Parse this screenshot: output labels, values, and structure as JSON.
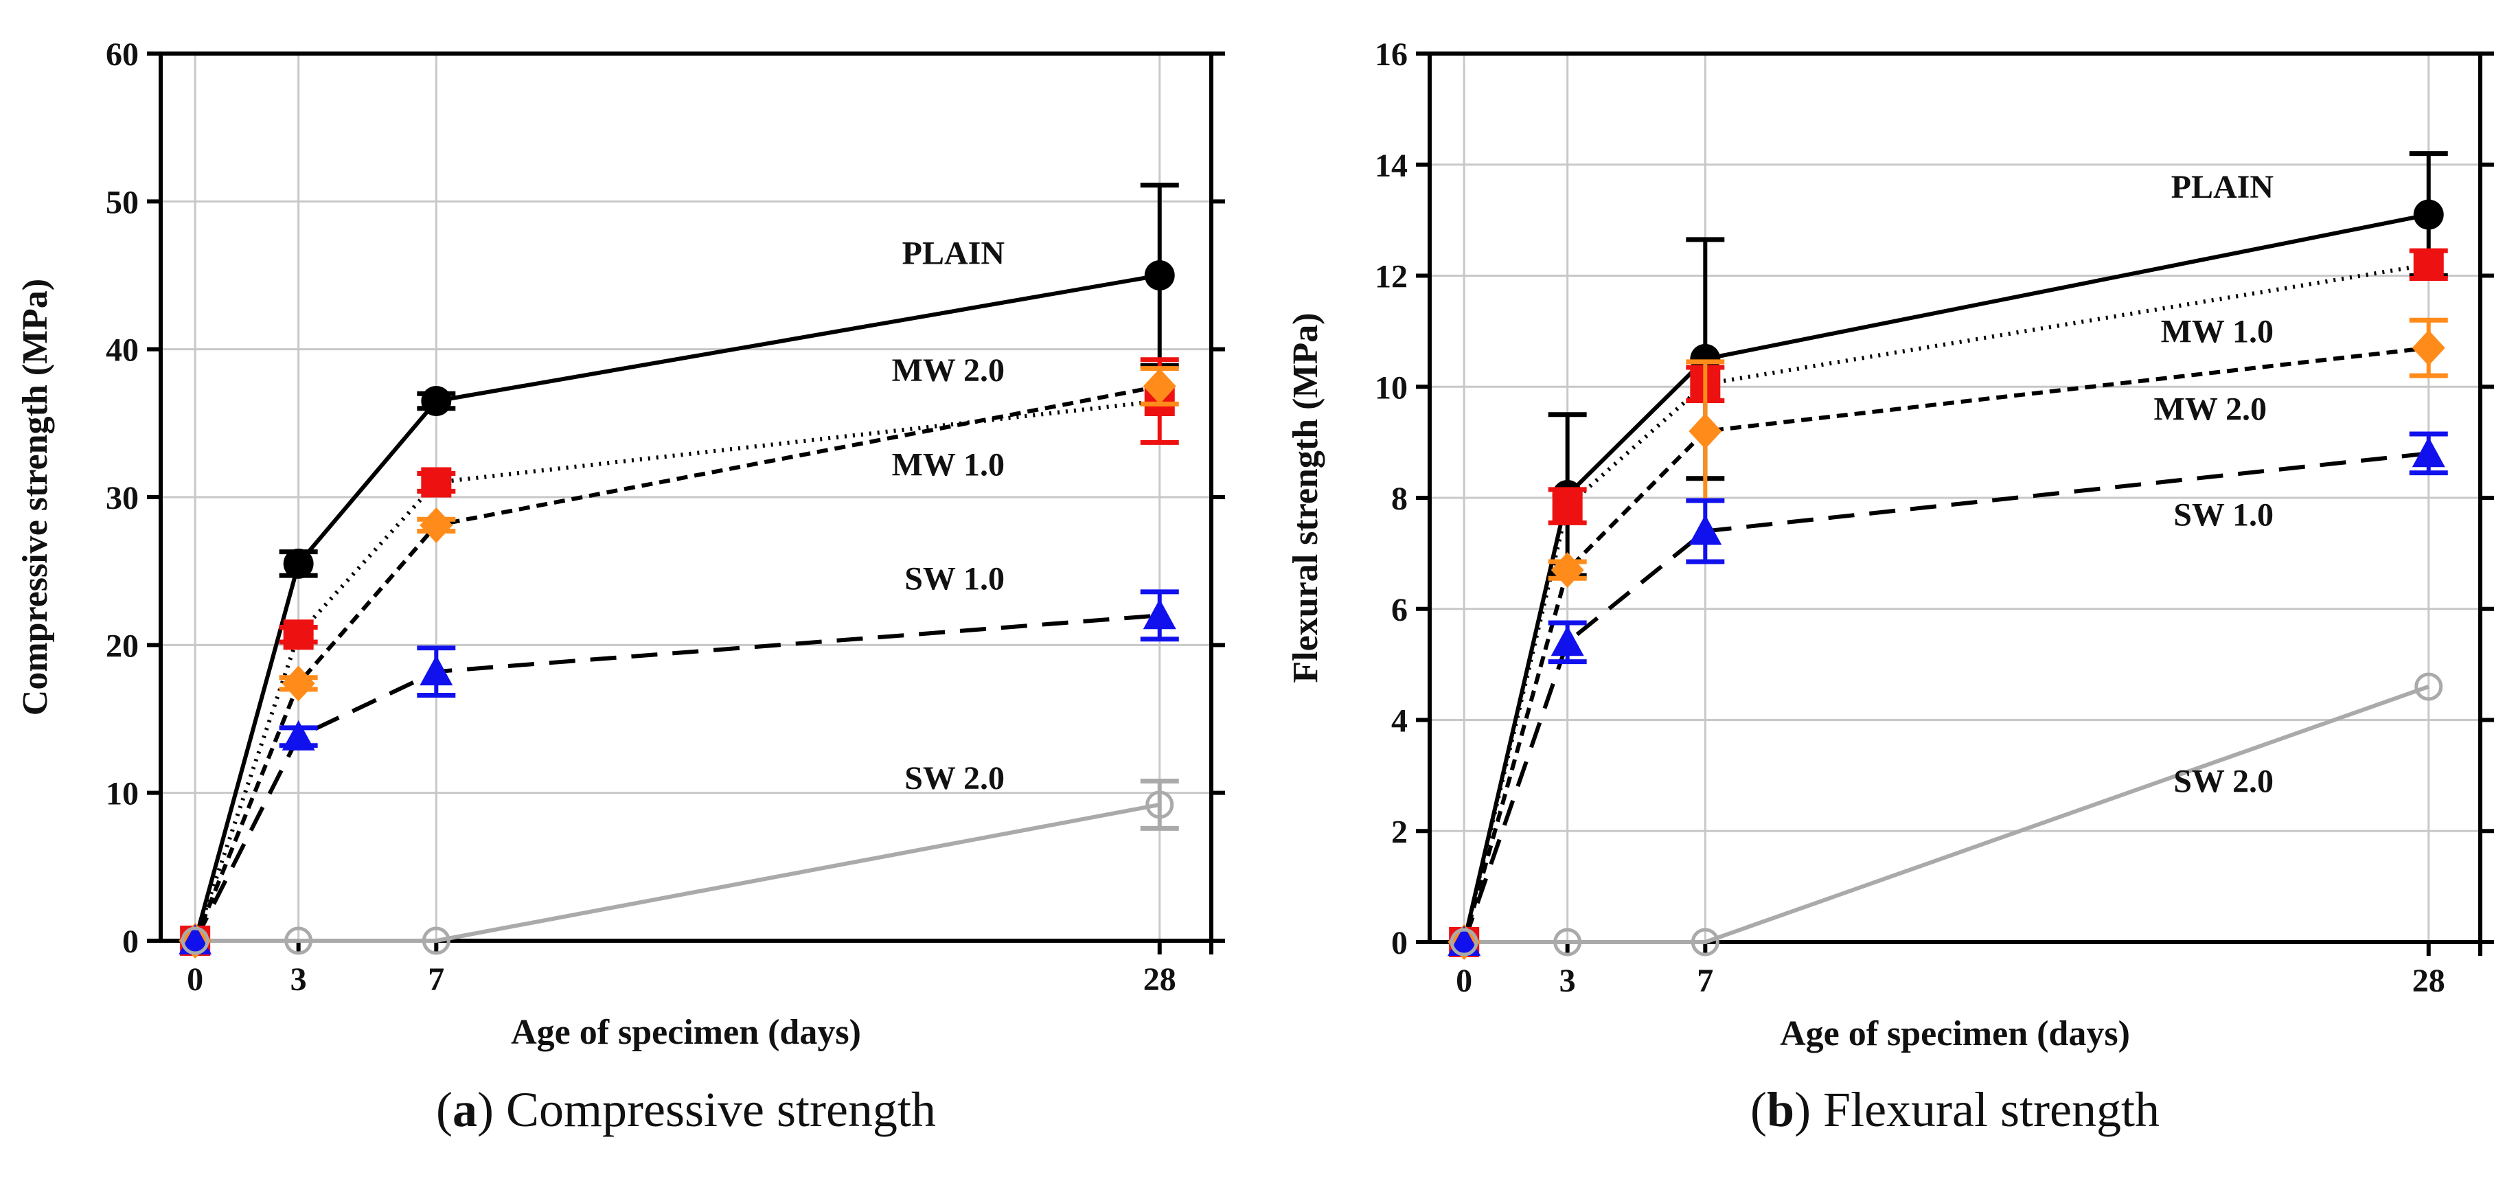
{
  "chart_data": [
    {
      "type": "line",
      "caption_letter": "a",
      "caption_text": "Compressive strength",
      "xlabel": "Age of specimen (days)",
      "ylabel": "Compressive strength (MPa)",
      "xlim": [
        -1,
        29.5
      ],
      "ylim": [
        0,
        60
      ],
      "xticks": [
        0,
        3,
        7,
        28
      ],
      "yticks": [
        0,
        10,
        20,
        30,
        40,
        50,
        60
      ],
      "grid": true,
      "x": [
        0,
        3,
        7,
        28
      ],
      "series": [
        {
          "name": "PLAIN",
          "label": "PLAIN",
          "color": "#000000",
          "marker": "circle",
          "dash": "solid",
          "values": [
            0,
            25.5,
            36.5,
            45
          ],
          "err": [
            0,
            0.8,
            0.5,
            6.1
          ],
          "label_x": 23.5,
          "label_y": 46.5
        },
        {
          "name": "MW 2.0",
          "label": "MW 2.0",
          "color": "#ee1111",
          "marker": "square",
          "dash": "dotted",
          "values": [
            0,
            20.7,
            31,
            36.5
          ],
          "err": [
            0,
            0.5,
            0.6,
            2.8
          ],
          "label_x": 23.5,
          "label_y": 38.6
        },
        {
          "name": "MW 1.0",
          "label": "MW 1.0",
          "color": "#ff8c1a",
          "marker": "diamond",
          "dash": "short-dash",
          "values": [
            0,
            17.4,
            28.1,
            37.5
          ],
          "err": [
            0,
            0.4,
            0.4,
            1.2
          ],
          "label_x": 23.5,
          "label_y": 32.2
        },
        {
          "name": "SW 1.0",
          "label": "SW 1.0",
          "color": "#1111ee",
          "marker": "triangle",
          "dash": "long-dash",
          "values": [
            0,
            13.8,
            18.2,
            22
          ],
          "err": [
            0,
            0.6,
            1.6,
            1.6
          ],
          "label_x": 23.5,
          "label_y": 24.5
        },
        {
          "name": "SW 2.0",
          "label": "SW 2.0",
          "color": "#aaaaaa",
          "marker": "open-circle",
          "dash": "solid",
          "values": [
            0,
            0,
            0,
            9.2
          ],
          "err": [
            0,
            0,
            0,
            1.6
          ],
          "label_x": 23.5,
          "label_y": 11
        }
      ]
    },
    {
      "type": "line",
      "caption_letter": "b",
      "caption_text": "Flexural strength",
      "xlabel": "Age of specimen (days)",
      "ylabel": "Flexural strength (MPa)",
      "xlim": [
        -1,
        29.5
      ],
      "ylim": [
        0,
        16
      ],
      "xticks": [
        0,
        3,
        7,
        28
      ],
      "yticks": [
        0,
        2,
        4,
        6,
        8,
        10,
        12,
        14,
        16
      ],
      "grid": true,
      "x": [
        0,
        3,
        7,
        28
      ],
      "series": [
        {
          "name": "PLAIN",
          "label": "PLAIN",
          "color": "#000000",
          "marker": "circle",
          "dash": "solid",
          "values": [
            0,
            8.05,
            10.5,
            13.1
          ],
          "err": [
            0,
            1.45,
            2.15,
            1.1
          ],
          "label_x": 23.5,
          "label_y": 13.6
        },
        {
          "name": "MW 2.0",
          "label": "MW 2.0",
          "color": "#ee1111",
          "marker": "square",
          "dash": "dotted",
          "values": [
            0,
            7.85,
            10.05,
            12.2
          ],
          "err": [
            0,
            0.3,
            0.3,
            0.25
          ],
          "label_x": 23.3,
          "label_y": 9.6
        },
        {
          "name": "MW 1.0",
          "label": "MW 1.0",
          "color": "#ff8c1a",
          "marker": "diamond",
          "dash": "short-dash",
          "values": [
            0,
            6.7,
            9.2,
            10.7
          ],
          "err": [
            0,
            0.15,
            1.25,
            0.5
          ],
          "label_x": 23.5,
          "label_y": 11
        },
        {
          "name": "SW 1.0",
          "label": "SW 1.0",
          "color": "#1111ee",
          "marker": "triangle",
          "dash": "long-dash",
          "values": [
            0,
            5.4,
            7.4,
            8.8
          ],
          "err": [
            0,
            0.35,
            0.55,
            0.35
          ],
          "label_x": 23.5,
          "label_y": 7.7
        },
        {
          "name": "SW 2.0",
          "label": "SW 2.0",
          "color": "#aaaaaa",
          "marker": "open-circle",
          "dash": "solid",
          "values": [
            0,
            0,
            0,
            4.6
          ],
          "err": [
            0,
            0,
            0,
            0
          ],
          "label_x": 23.5,
          "label_y": 2.9
        }
      ]
    }
  ]
}
